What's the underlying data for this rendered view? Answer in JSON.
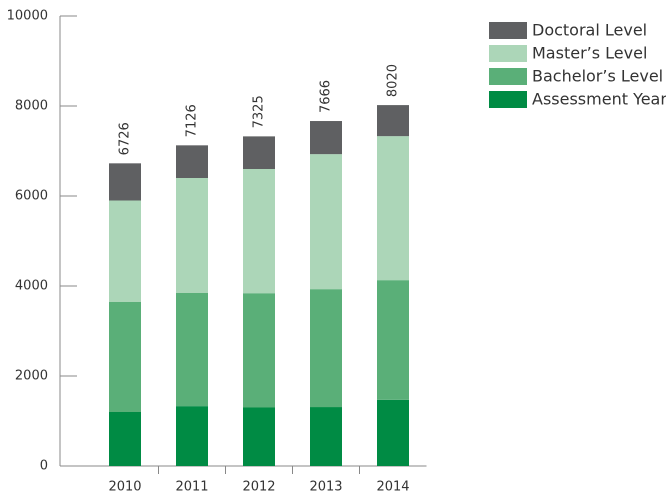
{
  "chart_data": {
    "type": "stacked_bar",
    "categories": [
      "2010",
      "2011",
      "2012",
      "2013",
      "2014"
    ],
    "series": [
      {
        "name": "Assessment Year",
        "color": "#008b44",
        "values": [
          1200,
          1330,
          1300,
          1310,
          1470
        ]
      },
      {
        "name": "Bachelor’s Level",
        "color": "#5aaf78",
        "values": [
          2450,
          2520,
          2540,
          2620,
          2660
        ]
      },
      {
        "name": "Master’s Level",
        "color": "#acd6b8",
        "values": [
          2250,
          2550,
          2760,
          3000,
          3200
        ]
      },
      {
        "name": "Doctoral Level",
        "color": "#5f6062",
        "values": [
          826,
          726,
          725,
          736,
          690
        ]
      }
    ],
    "totals": [
      6726,
      7126,
      7325,
      7666,
      8020
    ],
    "ylim": [
      0,
      10000
    ],
    "yticks": [
      0,
      2000,
      4000,
      6000,
      8000,
      10000
    ],
    "legend": "top-right"
  }
}
